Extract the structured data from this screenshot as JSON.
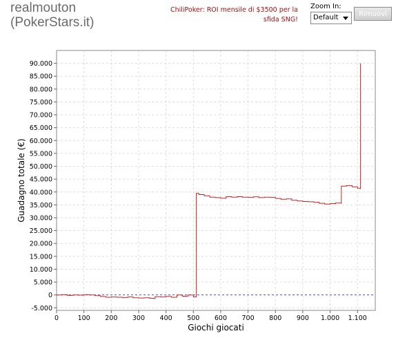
{
  "header": {
    "player_line1": "realmouton",
    "player_line2": "(PokerStars.it)",
    "promo_line1": "ChiliPoker: ROI mensile di $3500 per la",
    "promo_line2": "sfida SNG!",
    "zoom_label": "Zoom In:",
    "zoom_selected": "Default",
    "remove_label": "Rimuovi"
  },
  "colors": {
    "series": "#cc2222",
    "zero_line": "#5555aa",
    "grid": "#dddddd",
    "promo_text": "#a01010"
  },
  "chart_data": {
    "type": "line",
    "xlabel": "Giochi giocati",
    "ylabel": "Guadagno totale  (€)",
    "xlim": [
      0,
      1165
    ],
    "ylim": [
      -6000,
      95000
    ],
    "grid": true,
    "legend": "none",
    "x_ticks": [
      0,
      100,
      200,
      300,
      400,
      500,
      600,
      700,
      800,
      900,
      1000,
      1100
    ],
    "x_tick_labels": [
      "0",
      "100",
      "200",
      "300",
      "400",
      "500",
      "600",
      "700",
      "800",
      "900",
      "1.000",
      "1.100"
    ],
    "y_ticks": [
      -5000,
      0,
      5000,
      10000,
      15000,
      20000,
      25000,
      30000,
      35000,
      40000,
      45000,
      50000,
      55000,
      60000,
      65000,
      70000,
      75000,
      80000,
      85000,
      90000
    ],
    "y_tick_labels": [
      "-5.000",
      "0",
      "5.000",
      "10.000",
      "15.000",
      "20.000",
      "25.000",
      "30.000",
      "35.000",
      "40.000",
      "45.000",
      "50.000",
      "55.000",
      "60.000",
      "65.000",
      "70.000",
      "75.000",
      "80.000",
      "85.000",
      "90.000"
    ],
    "series": [
      {
        "x": [
          0,
          20,
          40,
          60,
          80,
          100,
          120,
          140,
          160,
          180,
          200,
          220,
          240,
          260,
          280,
          300,
          320,
          340,
          355,
          360,
          380,
          400,
          420,
          440,
          460,
          480,
          500,
          510,
          511,
          520,
          540,
          560,
          580,
          600,
          620,
          640,
          660,
          680,
          700,
          720,
          740,
          760,
          780,
          800,
          820,
          840,
          860,
          880,
          900,
          920,
          940,
          960,
          980,
          1000,
          1020,
          1040,
          1041,
          1060,
          1080,
          1100,
          1110,
          1111
        ],
        "y": [
          0,
          100,
          -200,
          0,
          -100,
          100,
          0,
          -300,
          -600,
          -900,
          -800,
          -900,
          -1000,
          -800,
          -1100,
          -1200,
          -1100,
          -1300,
          -1400,
          -700,
          -800,
          -600,
          -900,
          0,
          -500,
          0,
          -800,
          -700,
          39500,
          39000,
          38500,
          38000,
          37800,
          37600,
          38200,
          38000,
          38200,
          38000,
          37900,
          38100,
          37800,
          38000,
          37900,
          37500,
          37200,
          37300,
          36800,
          36500,
          36300,
          36200,
          36000,
          35600,
          35300,
          35500,
          35700,
          35600,
          42300,
          42500,
          42000,
          41500,
          41300,
          90000
        ]
      }
    ]
  }
}
